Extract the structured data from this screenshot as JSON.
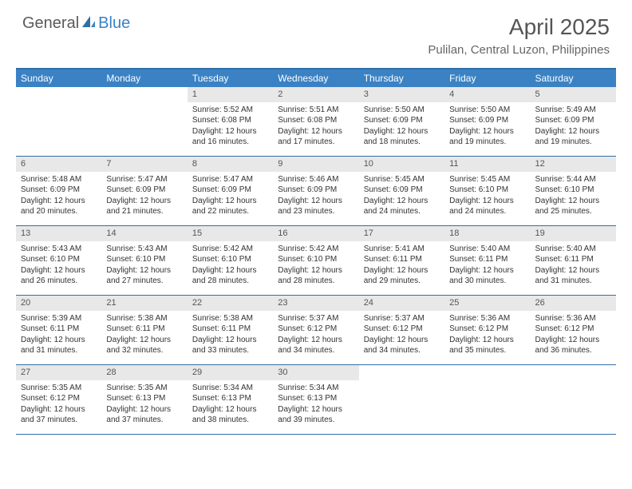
{
  "logo": {
    "general": "General",
    "blue": "Blue"
  },
  "title": "April 2025",
  "location": "Pulilan, Central Luzon, Philippines",
  "colors": {
    "header_bg": "#3b82c4",
    "border": "#2f6fa8",
    "daynum_bg": "#e8e8e8",
    "text": "#333333"
  },
  "weekdays": [
    "Sunday",
    "Monday",
    "Tuesday",
    "Wednesday",
    "Thursday",
    "Friday",
    "Saturday"
  ],
  "weeks": [
    [
      null,
      null,
      {
        "n": "1",
        "sr": "5:52 AM",
        "ss": "6:08 PM",
        "dl": "12 hours and 16 minutes."
      },
      {
        "n": "2",
        "sr": "5:51 AM",
        "ss": "6:08 PM",
        "dl": "12 hours and 17 minutes."
      },
      {
        "n": "3",
        "sr": "5:50 AM",
        "ss": "6:09 PM",
        "dl": "12 hours and 18 minutes."
      },
      {
        "n": "4",
        "sr": "5:50 AM",
        "ss": "6:09 PM",
        "dl": "12 hours and 19 minutes."
      },
      {
        "n": "5",
        "sr": "5:49 AM",
        "ss": "6:09 PM",
        "dl": "12 hours and 19 minutes."
      }
    ],
    [
      {
        "n": "6",
        "sr": "5:48 AM",
        "ss": "6:09 PM",
        "dl": "12 hours and 20 minutes."
      },
      {
        "n": "7",
        "sr": "5:47 AM",
        "ss": "6:09 PM",
        "dl": "12 hours and 21 minutes."
      },
      {
        "n": "8",
        "sr": "5:47 AM",
        "ss": "6:09 PM",
        "dl": "12 hours and 22 minutes."
      },
      {
        "n": "9",
        "sr": "5:46 AM",
        "ss": "6:09 PM",
        "dl": "12 hours and 23 minutes."
      },
      {
        "n": "10",
        "sr": "5:45 AM",
        "ss": "6:09 PM",
        "dl": "12 hours and 24 minutes."
      },
      {
        "n": "11",
        "sr": "5:45 AM",
        "ss": "6:10 PM",
        "dl": "12 hours and 24 minutes."
      },
      {
        "n": "12",
        "sr": "5:44 AM",
        "ss": "6:10 PM",
        "dl": "12 hours and 25 minutes."
      }
    ],
    [
      {
        "n": "13",
        "sr": "5:43 AM",
        "ss": "6:10 PM",
        "dl": "12 hours and 26 minutes."
      },
      {
        "n": "14",
        "sr": "5:43 AM",
        "ss": "6:10 PM",
        "dl": "12 hours and 27 minutes."
      },
      {
        "n": "15",
        "sr": "5:42 AM",
        "ss": "6:10 PM",
        "dl": "12 hours and 28 minutes."
      },
      {
        "n": "16",
        "sr": "5:42 AM",
        "ss": "6:10 PM",
        "dl": "12 hours and 28 minutes."
      },
      {
        "n": "17",
        "sr": "5:41 AM",
        "ss": "6:11 PM",
        "dl": "12 hours and 29 minutes."
      },
      {
        "n": "18",
        "sr": "5:40 AM",
        "ss": "6:11 PM",
        "dl": "12 hours and 30 minutes."
      },
      {
        "n": "19",
        "sr": "5:40 AM",
        "ss": "6:11 PM",
        "dl": "12 hours and 31 minutes."
      }
    ],
    [
      {
        "n": "20",
        "sr": "5:39 AM",
        "ss": "6:11 PM",
        "dl": "12 hours and 31 minutes."
      },
      {
        "n": "21",
        "sr": "5:38 AM",
        "ss": "6:11 PM",
        "dl": "12 hours and 32 minutes."
      },
      {
        "n": "22",
        "sr": "5:38 AM",
        "ss": "6:11 PM",
        "dl": "12 hours and 33 minutes."
      },
      {
        "n": "23",
        "sr": "5:37 AM",
        "ss": "6:12 PM",
        "dl": "12 hours and 34 minutes."
      },
      {
        "n": "24",
        "sr": "5:37 AM",
        "ss": "6:12 PM",
        "dl": "12 hours and 34 minutes."
      },
      {
        "n": "25",
        "sr": "5:36 AM",
        "ss": "6:12 PM",
        "dl": "12 hours and 35 minutes."
      },
      {
        "n": "26",
        "sr": "5:36 AM",
        "ss": "6:12 PM",
        "dl": "12 hours and 36 minutes."
      }
    ],
    [
      {
        "n": "27",
        "sr": "5:35 AM",
        "ss": "6:12 PM",
        "dl": "12 hours and 37 minutes."
      },
      {
        "n": "28",
        "sr": "5:35 AM",
        "ss": "6:13 PM",
        "dl": "12 hours and 37 minutes."
      },
      {
        "n": "29",
        "sr": "5:34 AM",
        "ss": "6:13 PM",
        "dl": "12 hours and 38 minutes."
      },
      {
        "n": "30",
        "sr": "5:34 AM",
        "ss": "6:13 PM",
        "dl": "12 hours and 39 minutes."
      },
      null,
      null,
      null
    ]
  ],
  "labels": {
    "sunrise": "Sunrise: ",
    "sunset": "Sunset: ",
    "daylight": "Daylight: "
  }
}
